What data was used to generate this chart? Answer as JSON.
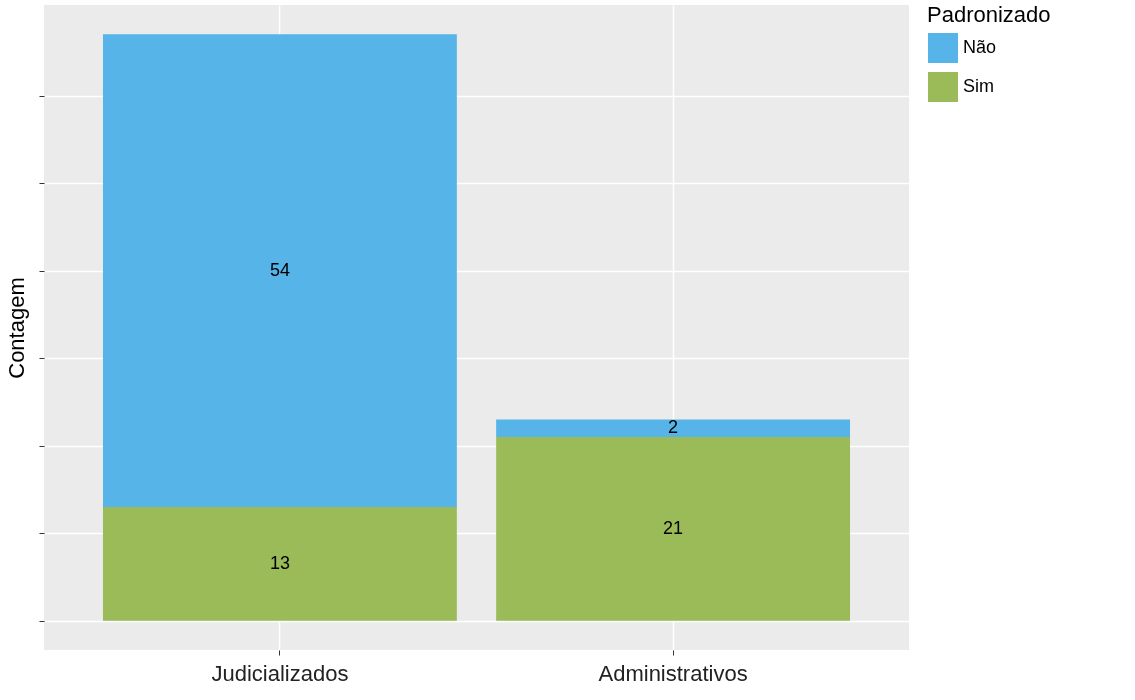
{
  "chart_data": {
    "type": "bar",
    "stacked": true,
    "ylabel": "Contagem",
    "legend_title": "Padronizado",
    "categories": [
      "Judicializados",
      "Administrativos"
    ],
    "series": [
      {
        "name": "Sim",
        "color": "#9bbb59",
        "values": [
          13,
          21
        ]
      },
      {
        "name": "Não",
        "color": "#56b4e9",
        "values": [
          54,
          2
        ]
      }
    ],
    "ylim": [
      -3.35,
      70.35
    ],
    "yticks": [
      {
        "value": 0,
        "label": null
      },
      {
        "value": 10,
        "label": null
      },
      {
        "value": 20,
        "label": null
      },
      {
        "value": 30,
        "label": null
      },
      {
        "value": 40,
        "label": null
      },
      {
        "value": 50,
        "label": null
      },
      {
        "value": 60,
        "label": null
      }
    ],
    "tick_labels": "x",
    "grid": true,
    "legend": "right",
    "data_labels": true
  }
}
